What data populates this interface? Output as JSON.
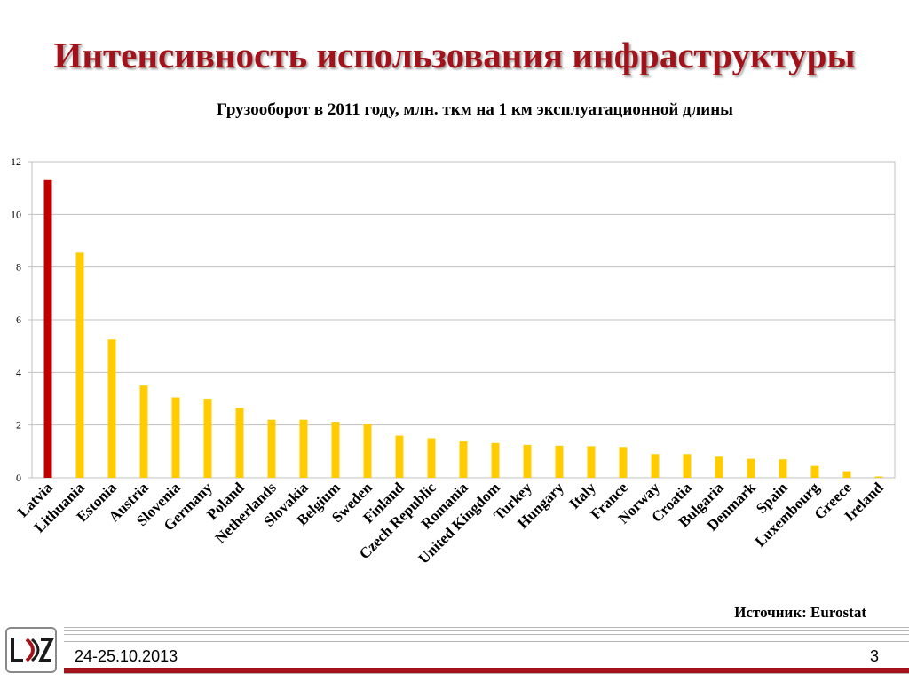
{
  "slide": {
    "title": "Интенсивность использования инфраструктуры",
    "source": "Источник: Eurostat",
    "date": "24-25.10.2013",
    "page_number": "3",
    "logo_text": "LDZ"
  },
  "colors": {
    "highlight": "#c00000",
    "bar": "#ffcc00",
    "title": "#a3121a",
    "grid": "#c0c0c0"
  },
  "chart_data": {
    "type": "bar",
    "title": "Грузооборот в 2011 году, млн. ткм на 1 км эксплуатационной длины",
    "xlabel": "",
    "ylabel": "",
    "ylim": [
      0,
      12
    ],
    "yticks": [
      0,
      2,
      4,
      6,
      8,
      10,
      12
    ],
    "grid": true,
    "legend": "none",
    "categories": [
      "Latvia",
      "Lithuania",
      "Estonia",
      "Austria",
      "Slovenia",
      "Germany",
      "Poland",
      "Netherlands",
      "Slovakia",
      "Belgium",
      "Sweden",
      "Finland",
      "Czech Republic",
      "Romania",
      "United Kingdom",
      "Turkey",
      "Hungary",
      "Italy",
      "France",
      "Norway",
      "Croatia",
      "Bulgaria",
      "Denmark",
      "Spain",
      "Luxembourg",
      "Greece",
      "Ireland"
    ],
    "values": [
      11.3,
      8.55,
      5.25,
      3.5,
      3.05,
      3.0,
      2.65,
      2.2,
      2.2,
      2.12,
      2.05,
      1.6,
      1.5,
      1.38,
      1.32,
      1.25,
      1.22,
      1.2,
      1.17,
      0.9,
      0.9,
      0.8,
      0.72,
      0.7,
      0.45,
      0.25,
      0.05
    ],
    "highlight_index": 0
  }
}
